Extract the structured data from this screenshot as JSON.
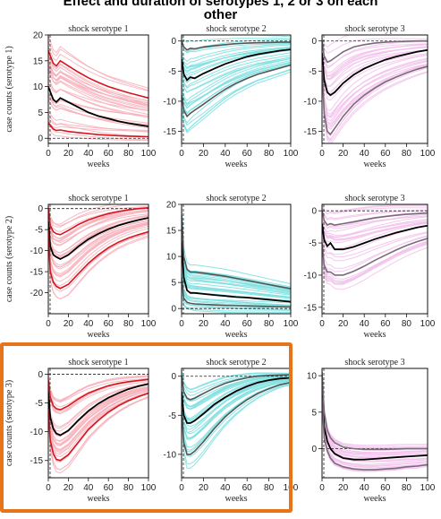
{
  "title_line1": "Effect and duration of serotypes 1, 2 or 3 on each",
  "title_line2": "other",
  "colors": {
    "serotype1_light": "#f6b3bd",
    "serotype1_band": "#d9141b",
    "serotype2_light": "#7fe0e0",
    "serotype2_band": "#555555",
    "serotype3_light": "#f3c3ec",
    "serotype3_band": "#7a6b7a",
    "mean_line": "#000000",
    "highlight_border": "#e8741a"
  },
  "highlighted_row": 3,
  "chart_data": [
    {
      "type": "line",
      "row": 1,
      "col": 1,
      "title": "shock serotype 1",
      "xlabel": "weeks",
      "ylabel": "case counts (serotype 1)",
      "xlim": [
        0,
        100
      ],
      "ylim": [
        -1,
        20
      ],
      "xticks": [
        0,
        20,
        40,
        60,
        80,
        100
      ],
      "yticks": [
        0,
        5,
        10,
        15,
        20
      ],
      "x": [
        0,
        2,
        5,
        8,
        12,
        20,
        30,
        40,
        50,
        60,
        70,
        80,
        90,
        100
      ],
      "series": [
        {
          "role": "mean",
          "values": [
            10,
            9,
            7.5,
            7,
            7.8,
            7,
            6,
            5,
            4.3,
            3.8,
            3.3,
            2.9,
            2.6,
            2.3
          ]
        },
        {
          "role": "upper",
          "values": [
            17,
            16,
            14.5,
            14,
            15,
            14,
            12.8,
            11.7,
            10.8,
            10,
            9.4,
            8.8,
            8.3,
            7.8
          ]
        },
        {
          "role": "lower",
          "values": [
            3,
            2.5,
            1.8,
            1.5,
            1.6,
            1.3,
            1.1,
            0.9,
            0.7,
            0.6,
            0.5,
            0.4,
            0.35,
            0.3
          ]
        }
      ]
    },
    {
      "type": "line",
      "row": 1,
      "col": 2,
      "title": "shock serotype 2",
      "xlabel": "weeks",
      "ylabel": "",
      "xlim": [
        0,
        100
      ],
      "ylim": [
        -17,
        1
      ],
      "xticks": [
        0,
        20,
        40,
        60,
        80,
        100
      ],
      "yticks": [
        0,
        -5,
        -10,
        -15
      ],
      "x": [
        0,
        2,
        5,
        8,
        12,
        20,
        30,
        40,
        50,
        60,
        70,
        80,
        90,
        100
      ],
      "series": [
        {
          "role": "mean",
          "values": [
            -3,
            -5.5,
            -6.5,
            -6,
            -6.2,
            -5.4,
            -4.6,
            -3.8,
            -3.2,
            -2.6,
            -2.2,
            -1.9,
            -1.6,
            -1.4
          ]
        },
        {
          "role": "upper",
          "values": [
            0,
            -1,
            -1.5,
            -1.2,
            -1.3,
            -1,
            -0.8,
            -0.6,
            -0.45,
            -0.35,
            -0.3,
            -0.25,
            -0.2,
            -0.2
          ]
        },
        {
          "role": "lower",
          "values": [
            -9,
            -11.5,
            -12.5,
            -12,
            -11.5,
            -10.5,
            -9.2,
            -8,
            -7,
            -6.2,
            -5.5,
            -5,
            -4.5,
            -4
          ]
        }
      ]
    },
    {
      "type": "line",
      "row": 1,
      "col": 3,
      "title": "shock serotype 3",
      "xlabel": "weeks",
      "ylabel": "",
      "xlim": [
        0,
        100
      ],
      "ylim": [
        -17,
        1
      ],
      "xticks": [
        0,
        20,
        40,
        60,
        80,
        100
      ],
      "yticks": [
        0,
        -5,
        -10,
        -15
      ],
      "x": [
        0,
        2,
        5,
        8,
        12,
        20,
        30,
        40,
        50,
        60,
        70,
        80,
        90,
        100
      ],
      "series": [
        {
          "role": "mean",
          "values": [
            -2,
            -6.5,
            -8.5,
            -9,
            -8.5,
            -7,
            -5.6,
            -4.6,
            -3.8,
            -3.1,
            -2.6,
            -2.2,
            -1.8,
            -1.5
          ]
        },
        {
          "role": "upper",
          "values": [
            0,
            -2.5,
            -3.5,
            -3.3,
            -2.8,
            -1.8,
            -1,
            -0.6,
            -0.35,
            -0.2,
            -0.1,
            -0.05,
            0,
            0
          ]
        },
        {
          "role": "lower",
          "values": [
            -4,
            -12,
            -15,
            -15.5,
            -14.5,
            -12.5,
            -10.5,
            -9,
            -7.8,
            -6.8,
            -6,
            -5.3,
            -4.7,
            -4.2
          ]
        }
      ]
    },
    {
      "type": "line",
      "row": 2,
      "col": 1,
      "title": "shock serotype 1",
      "xlabel": "weeks",
      "ylabel": "case counts (serotype 2)",
      "xlim": [
        0,
        100
      ],
      "ylim": [
        -25,
        1
      ],
      "xticks": [
        0,
        20,
        40,
        60,
        80,
        100
      ],
      "yticks": [
        0,
        -5,
        -10,
        -15,
        -20
      ],
      "x": [
        0,
        2,
        5,
        8,
        12,
        20,
        30,
        40,
        50,
        60,
        70,
        80,
        90,
        100
      ],
      "series": [
        {
          "role": "mean",
          "values": [
            -3,
            -9,
            -11,
            -11.5,
            -12,
            -11,
            -9,
            -7.3,
            -6,
            -4.9,
            -4,
            -3.3,
            -2.7,
            -2.2
          ]
        },
        {
          "role": "upper",
          "values": [
            0,
            -4,
            -5.5,
            -6,
            -6.2,
            -5.2,
            -3.8,
            -2.7,
            -1.9,
            -1.2,
            -0.7,
            -0.3,
            0,
            0.2
          ]
        },
        {
          "role": "lower",
          "values": [
            -5,
            -15,
            -17.5,
            -18.5,
            -19,
            -18,
            -15.5,
            -13,
            -11,
            -9.3,
            -8,
            -7,
            -6.2,
            -5.5
          ]
        }
      ]
    },
    {
      "type": "line",
      "row": 2,
      "col": 2,
      "title": "shock serotype 2",
      "xlabel": "weeks",
      "ylabel": "",
      "xlim": [
        0,
        100
      ],
      "ylim": [
        -1,
        20
      ],
      "xticks": [
        0,
        20,
        40,
        60,
        80,
        100
      ],
      "yticks": [
        0,
        5,
        10,
        15,
        20
      ],
      "x": [
        0,
        2,
        5,
        8,
        12,
        20,
        30,
        40,
        50,
        60,
        70,
        80,
        90,
        100
      ],
      "series": [
        {
          "role": "mean",
          "values": [
            13,
            6,
            3.5,
            3,
            3,
            2.8,
            2.6,
            2.4,
            2.2,
            2.1,
            1.9,
            1.7,
            1.5,
            1.3
          ]
        },
        {
          "role": "upper",
          "values": [
            18,
            10,
            7.5,
            7,
            7,
            6.8,
            6.5,
            6.2,
            5.8,
            5.4,
            5,
            4.6,
            4.2,
            3.8
          ]
        },
        {
          "role": "lower",
          "values": [
            6,
            2,
            1.2,
            1,
            0.9,
            0.8,
            0.7,
            0.6,
            0.55,
            0.5,
            0.45,
            0.4,
            0.35,
            0.3
          ]
        }
      ]
    },
    {
      "type": "line",
      "row": 2,
      "col": 3,
      "title": "shock serotype 3",
      "xlabel": "weeks",
      "ylabel": "",
      "xlim": [
        0,
        100
      ],
      "ylim": [
        -16,
        1
      ],
      "xticks": [
        0,
        20,
        40,
        60,
        80,
        100
      ],
      "yticks": [
        0,
        -5,
        -10,
        -15
      ],
      "x": [
        0,
        2,
        5,
        8,
        12,
        20,
        30,
        40,
        50,
        60,
        70,
        80,
        90,
        100
      ],
      "series": [
        {
          "role": "mean",
          "values": [
            -2,
            -4.5,
            -5.5,
            -5,
            -6,
            -6,
            -5.6,
            -5,
            -4.4,
            -3.9,
            -3.4,
            -3,
            -2.6,
            -2.3
          ]
        },
        {
          "role": "upper",
          "values": [
            0,
            -1.5,
            -2.2,
            -2,
            -2.2,
            -2,
            -1.7,
            -1.4,
            -1.1,
            -0.9,
            -0.7,
            -0.55,
            -0.45,
            -0.35
          ]
        },
        {
          "role": "lower",
          "values": [
            -5,
            -8.5,
            -9.5,
            -9.5,
            -10,
            -10,
            -9.4,
            -8.6,
            -7.7,
            -6.9,
            -6.1,
            -5.4,
            -4.8,
            -4.3
          ]
        }
      ]
    },
    {
      "type": "line",
      "row": 3,
      "col": 1,
      "title": "shock serotype 1",
      "xlabel": "weeks",
      "ylabel": "case counts (serotype 3)",
      "xlim": [
        0,
        100
      ],
      "ylim": [
        -18,
        1
      ],
      "xticks": [
        0,
        20,
        40,
        60,
        80,
        100
      ],
      "yticks": [
        0,
        -5,
        -10,
        -15
      ],
      "x": [
        0,
        2,
        5,
        8,
        12,
        20,
        30,
        40,
        50,
        60,
        70,
        80,
        90,
        100
      ],
      "series": [
        {
          "role": "mean",
          "values": [
            -3,
            -7.5,
            -9.5,
            -10.3,
            -10.6,
            -9.8,
            -8,
            -6.4,
            -5.1,
            -4.1,
            -3.3,
            -2.6,
            -2.1,
            -1.7
          ]
        },
        {
          "role": "upper",
          "values": [
            -1,
            -4,
            -5.5,
            -6,
            -6.2,
            -5.5,
            -4.3,
            -3.3,
            -2.6,
            -2,
            -1.6,
            -1.3,
            -1.1,
            -0.9
          ]
        },
        {
          "role": "lower",
          "values": [
            -6,
            -11.5,
            -13.8,
            -14.8,
            -15,
            -14,
            -11.8,
            -9.6,
            -8,
            -6.6,
            -5.5,
            -4.6,
            -3.9,
            -3.3
          ]
        }
      ]
    },
    {
      "type": "line",
      "row": 3,
      "col": 2,
      "title": "shock serotype 2",
      "xlabel": "weeks",
      "ylabel": "",
      "xlim": [
        0,
        100
      ],
      "ylim": [
        -13,
        1
      ],
      "xticks": [
        0,
        20,
        40,
        60,
        80,
        100
      ],
      "yticks": [
        0,
        -5,
        -10
      ],
      "x": [
        0,
        2,
        5,
        8,
        12,
        20,
        30,
        40,
        50,
        60,
        70,
        80,
        90,
        100
      ],
      "series": [
        {
          "role": "mean",
          "values": [
            -2,
            -5,
            -6,
            -6,
            -5.7,
            -4.8,
            -3.6,
            -2.7,
            -1.9,
            -1.3,
            -0.8,
            -0.5,
            -0.3,
            -0.2
          ]
        },
        {
          "role": "upper",
          "values": [
            0,
            -2,
            -2.8,
            -3,
            -2.8,
            -2.2,
            -1.5,
            -0.9,
            -0.5,
            -0.2,
            0,
            0.1,
            0.15,
            0.2
          ]
        },
        {
          "role": "lower",
          "values": [
            -4,
            -8.5,
            -10,
            -10,
            -9.6,
            -8.4,
            -6.7,
            -5.2,
            -4,
            -3,
            -2.2,
            -1.6,
            -1.1,
            -0.8
          ]
        }
      ]
    },
    {
      "type": "line",
      "row": 3,
      "col": 3,
      "title": "shock serotype 3",
      "xlabel": "weeks",
      "ylabel": "",
      "xlim": [
        0,
        100
      ],
      "ylim": [
        -4,
        11
      ],
      "xticks": [
        0,
        20,
        40,
        60,
        80,
        100
      ],
      "yticks": [
        0,
        5,
        10
      ],
      "x": [
        0,
        2,
        5,
        8,
        12,
        20,
        30,
        40,
        50,
        60,
        70,
        80,
        90,
        100
      ],
      "series": [
        {
          "role": "mean",
          "values": [
            9,
            3,
            1,
            0,
            -0.7,
            -1.3,
            -1.5,
            -1.5,
            -1.4,
            -1.3,
            -1.2,
            -1.1,
            -1,
            -0.9
          ]
        },
        {
          "role": "upper",
          "values": [
            10.5,
            5,
            2.5,
            1.5,
            0.8,
            0.2,
            0,
            -0.1,
            -0.1,
            -0.1,
            -0.05,
            0,
            0,
            0
          ]
        },
        {
          "role": "lower",
          "values": [
            7,
            1.5,
            -0.3,
            -1.3,
            -2,
            -2.5,
            -2.8,
            -2.9,
            -2.9,
            -2.8,
            -2.7,
            -2.5,
            -2.4,
            -2.2
          ]
        }
      ]
    }
  ]
}
